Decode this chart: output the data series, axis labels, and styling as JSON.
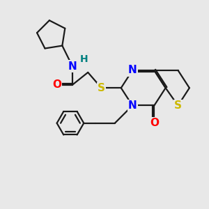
{
  "bg_color": "#e8e8e8",
  "bond_color": "#1a1a1a",
  "N_color": "#0000ff",
  "O_color": "#ff0000",
  "S_color": "#ccb800",
  "H_color": "#008080",
  "line_width": 1.6,
  "font_size_atom": 11,
  "font_size_H": 10,
  "xlim": [
    0,
    10
  ],
  "ylim": [
    0,
    10
  ]
}
